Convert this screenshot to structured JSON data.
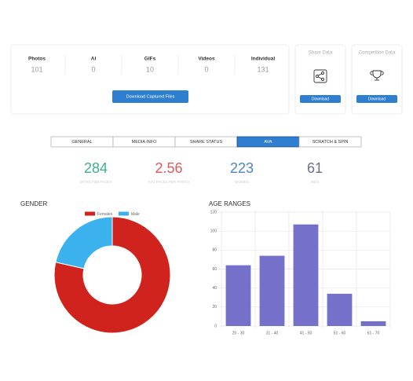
{
  "summary": {
    "items": [
      {
        "label": "Photos",
        "value": 101
      },
      {
        "label": "AI",
        "value": 0
      },
      {
        "label": "GIFs",
        "value": 10
      },
      {
        "label": "Videos",
        "value": 0
      },
      {
        "label": "Individual",
        "value": 131
      }
    ],
    "button": "Download Captured Files"
  },
  "side_cards": [
    {
      "title": "Share Data",
      "button": "Download"
    },
    {
      "title": "Competition Data",
      "button": "Download"
    }
  ],
  "tabs": {
    "items": [
      "GENERAL",
      "MEDIA INFO",
      "SHARE STATUS",
      "AVA",
      "SCRATCH & SPIN"
    ],
    "active": 3
  },
  "metrics": [
    {
      "value": 284,
      "label": "DETECTED FACES",
      "color": "#3fb08f"
    },
    {
      "value": 2.56,
      "label": "AVG FACES PER PHOTO",
      "color": "#e05a5a"
    },
    {
      "value": 223,
      "label": "WOMEN",
      "color": "#4f86c6"
    },
    {
      "value": 61,
      "label": "MEN",
      "color": "#6c6f86"
    }
  ],
  "chart_data": [
    {
      "type": "pie",
      "title": "GENDER",
      "categories": [
        "Females",
        "Male"
      ],
      "values": [
        223,
        61
      ],
      "colors": [
        "#d0231d",
        "#3bb2ee"
      ]
    },
    {
      "type": "bar",
      "title": "AGE RANGES",
      "categories": [
        "20 - 30",
        "31 - 40",
        "41 - 50",
        "51 - 60",
        "61 - 70"
      ],
      "values": [
        64,
        74,
        107,
        34,
        5
      ],
      "color": "#7570c9",
      "ylim": [
        0,
        120
      ],
      "yticks": [
        0,
        20,
        40,
        60,
        80,
        100,
        120
      ],
      "grid": true
    }
  ]
}
